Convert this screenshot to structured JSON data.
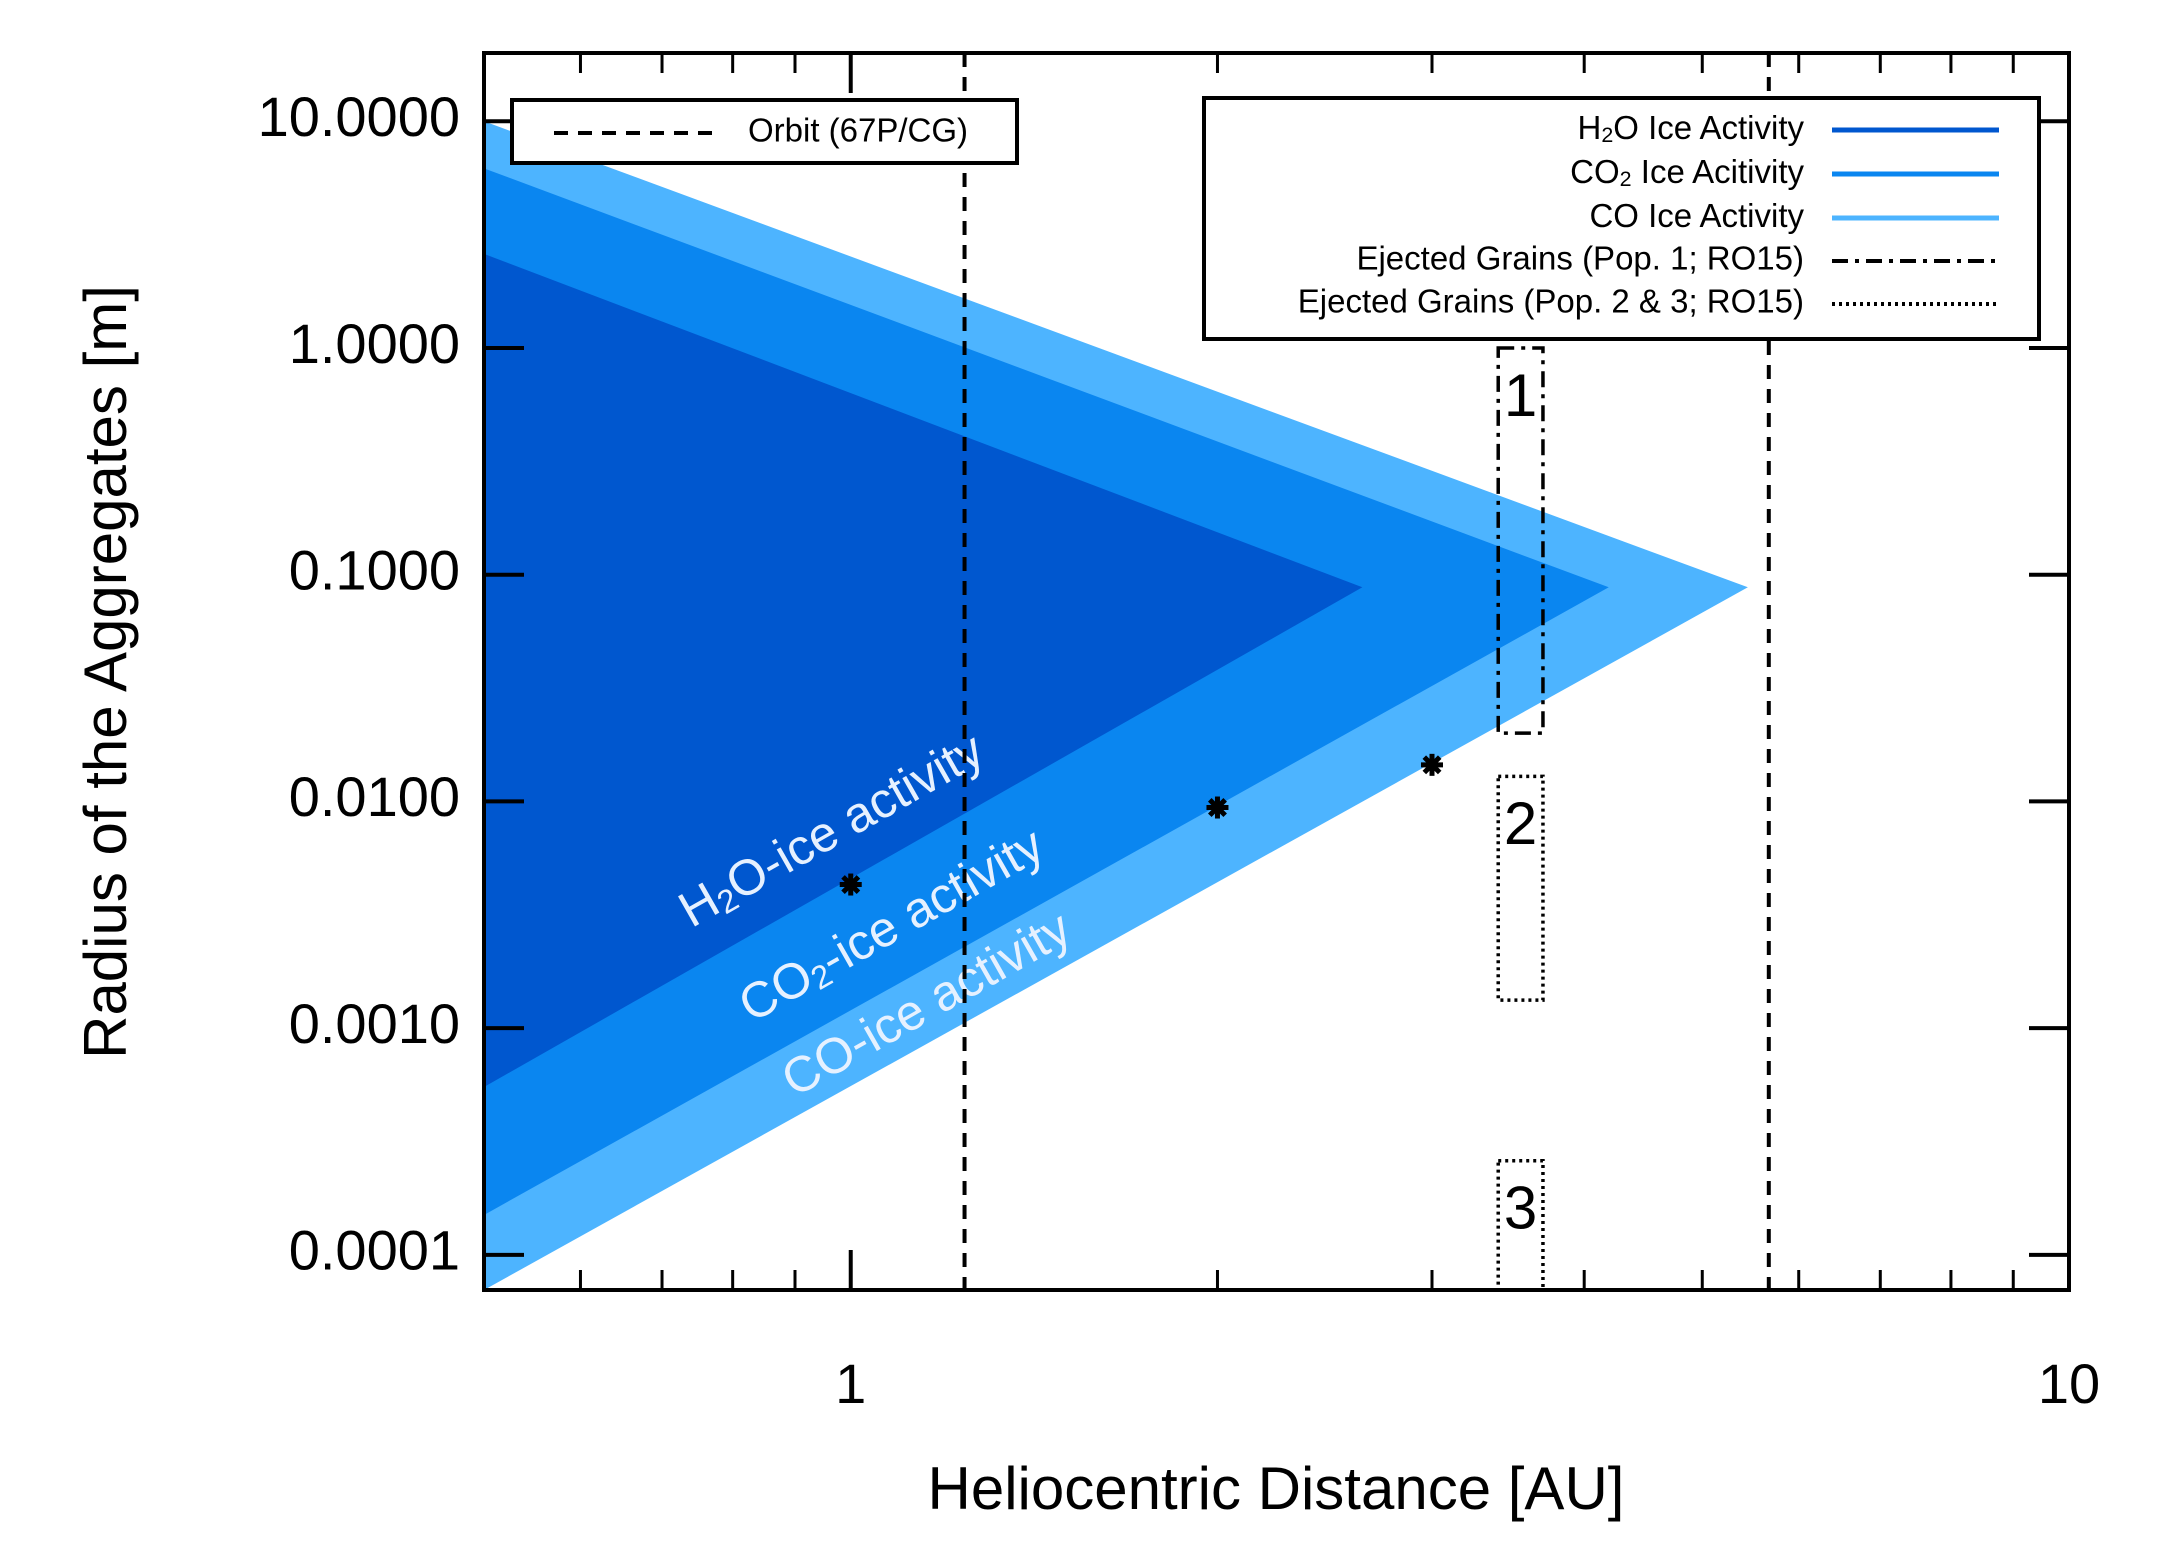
{
  "chart_data": {
    "type": "log-region",
    "xlabel": "Heliocentric Distance [AU]",
    "ylabel": "Radius of the Aggregates [m]",
    "xscale": "log",
    "yscale": "log",
    "xlim": [
      0.5,
      10
    ],
    "ylim": [
      7e-05,
      20
    ],
    "xticks": [
      1,
      10
    ],
    "xminor_ticks": [
      0.6,
      0.7,
      0.8,
      0.9,
      2,
      3,
      4,
      5,
      6,
      7,
      8,
      9
    ],
    "yticks": [
      {
        "value": 0.0001,
        "label": "0.0001"
      },
      {
        "value": 0.001,
        "label": "0.0010"
      },
      {
        "value": 0.01,
        "label": "0.0100"
      },
      {
        "value": 0.1,
        "label": "0.1000"
      },
      {
        "value": 1,
        "label": "1.0000"
      },
      {
        "value": 10,
        "label": "10.0000"
      }
    ],
    "regions": [
      {
        "name": [
          "CO Ice Activity"
        ],
        "label": [
          "CO-ice activity"
        ],
        "color": "#4db4ff",
        "x": [
          0.5,
          5.45,
          0.5
        ],
        "y": [
          10,
          0.088,
          7e-05
        ]
      },
      {
        "name": [
          "CO",
          "2",
          " Ice Acitivity"
        ],
        "label": [
          "CO",
          "2",
          "-ice activity"
        ],
        "color": "#0a86f0",
        "x": [
          0.5,
          4.19,
          0.5
        ],
        "y": [
          6.2,
          0.088,
          0.00015
        ]
      },
      {
        "name": [
          "H",
          "2",
          "O Ice Activity"
        ],
        "label": [
          "H",
          "2",
          "O-ice activity"
        ],
        "color": "#0057cf",
        "x": [
          0.5,
          2.63,
          0.5
        ],
        "y": [
          2.6,
          0.088,
          0.00055
        ]
      }
    ],
    "orbit": {
      "name": "Orbit (67P/CG)",
      "x": [
        1.24,
        5.67
      ]
    },
    "grains": [
      {
        "name": "Ejected Grains (Pop. 1; RO15)",
        "style": "dashdot",
        "boxes": [
          {
            "label": "1",
            "x": [
              3.4,
              3.7
            ],
            "y": [
              0.02,
              1.0
            ]
          }
        ]
      },
      {
        "name": "Ejected Grains (Pop. 2 & 3; RO15)",
        "style": "dotted",
        "boxes": [
          {
            "label": "2",
            "x": [
              3.4,
              3.7
            ],
            "y": [
              0.00133,
              0.0129
            ]
          },
          {
            "label": "3",
            "x": [
              3.4,
              3.7
            ],
            "y": [
              7e-05,
              0.00026
            ]
          }
        ]
      }
    ],
    "points": {
      "x": [
        1,
        2,
        3
      ],
      "y": [
        0.0043,
        0.0094,
        0.0145
      ]
    }
  }
}
